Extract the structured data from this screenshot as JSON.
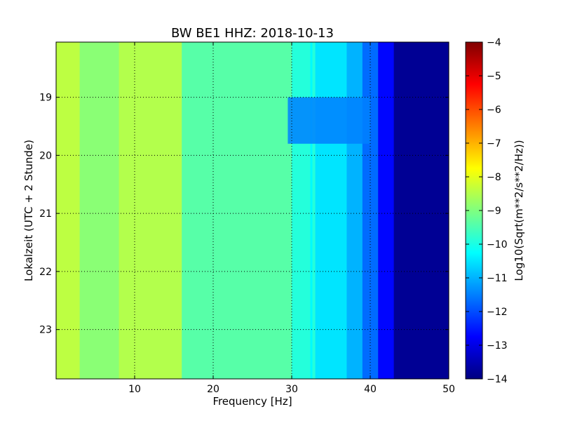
{
  "chart_data": {
    "type": "heatmap",
    "title": "BW BE1 HHZ: 2018-10-13",
    "xlabel": "Frequency [Hz]",
    "ylabel": "Lokalzeit (UTC + 2 Stunde)",
    "xlim": [
      0,
      50
    ],
    "ylim": [
      18.05,
      23.85
    ],
    "x_ticks": [
      "10",
      "20",
      "30",
      "40",
      "50"
    ],
    "y_ticks": [
      "19",
      "20",
      "21",
      "22",
      "23"
    ],
    "grid": true,
    "colormap": "jet",
    "colorbar": {
      "label": "Log10(Sqrt(m**2/s**2/Hz))",
      "range": [
        -14,
        -4
      ],
      "ticks": [
        "-4",
        "-5",
        "-6",
        "-7",
        "-8",
        "-9",
        "-10",
        "-11",
        "-12",
        "-13",
        "-14"
      ]
    },
    "frequency_bands_hz": [
      {
        "from": 0,
        "to": 3,
        "level": -8.4
      },
      {
        "from": 3,
        "to": 8,
        "level": -8.9
      },
      {
        "from": 8,
        "to": 16,
        "level": -8.5
      },
      {
        "from": 16,
        "to": 30,
        "level": -9.4
      },
      {
        "from": 30,
        "to": 33,
        "level": -9.9
      },
      {
        "from": 33,
        "to": 37,
        "level": -10.5
      },
      {
        "from": 37,
        "to": 39,
        "level": -11.0
      },
      {
        "from": 39,
        "to": 41,
        "level": -11.7
      },
      {
        "from": 41,
        "to": 43,
        "level": -12.7
      },
      {
        "from": 43,
        "to": 50,
        "level": -13.8
      }
    ],
    "features": [
      {
        "type": "narrow line",
        "frequency_hz": 32.5,
        "time_range": [
          18.05,
          23.85
        ],
        "level": -10.3
      },
      {
        "type": "low-level block",
        "frequency_range_hz": [
          29.5,
          40
        ],
        "time_range": [
          19.0,
          19.8
        ],
        "level": -11.5
      }
    ]
  }
}
